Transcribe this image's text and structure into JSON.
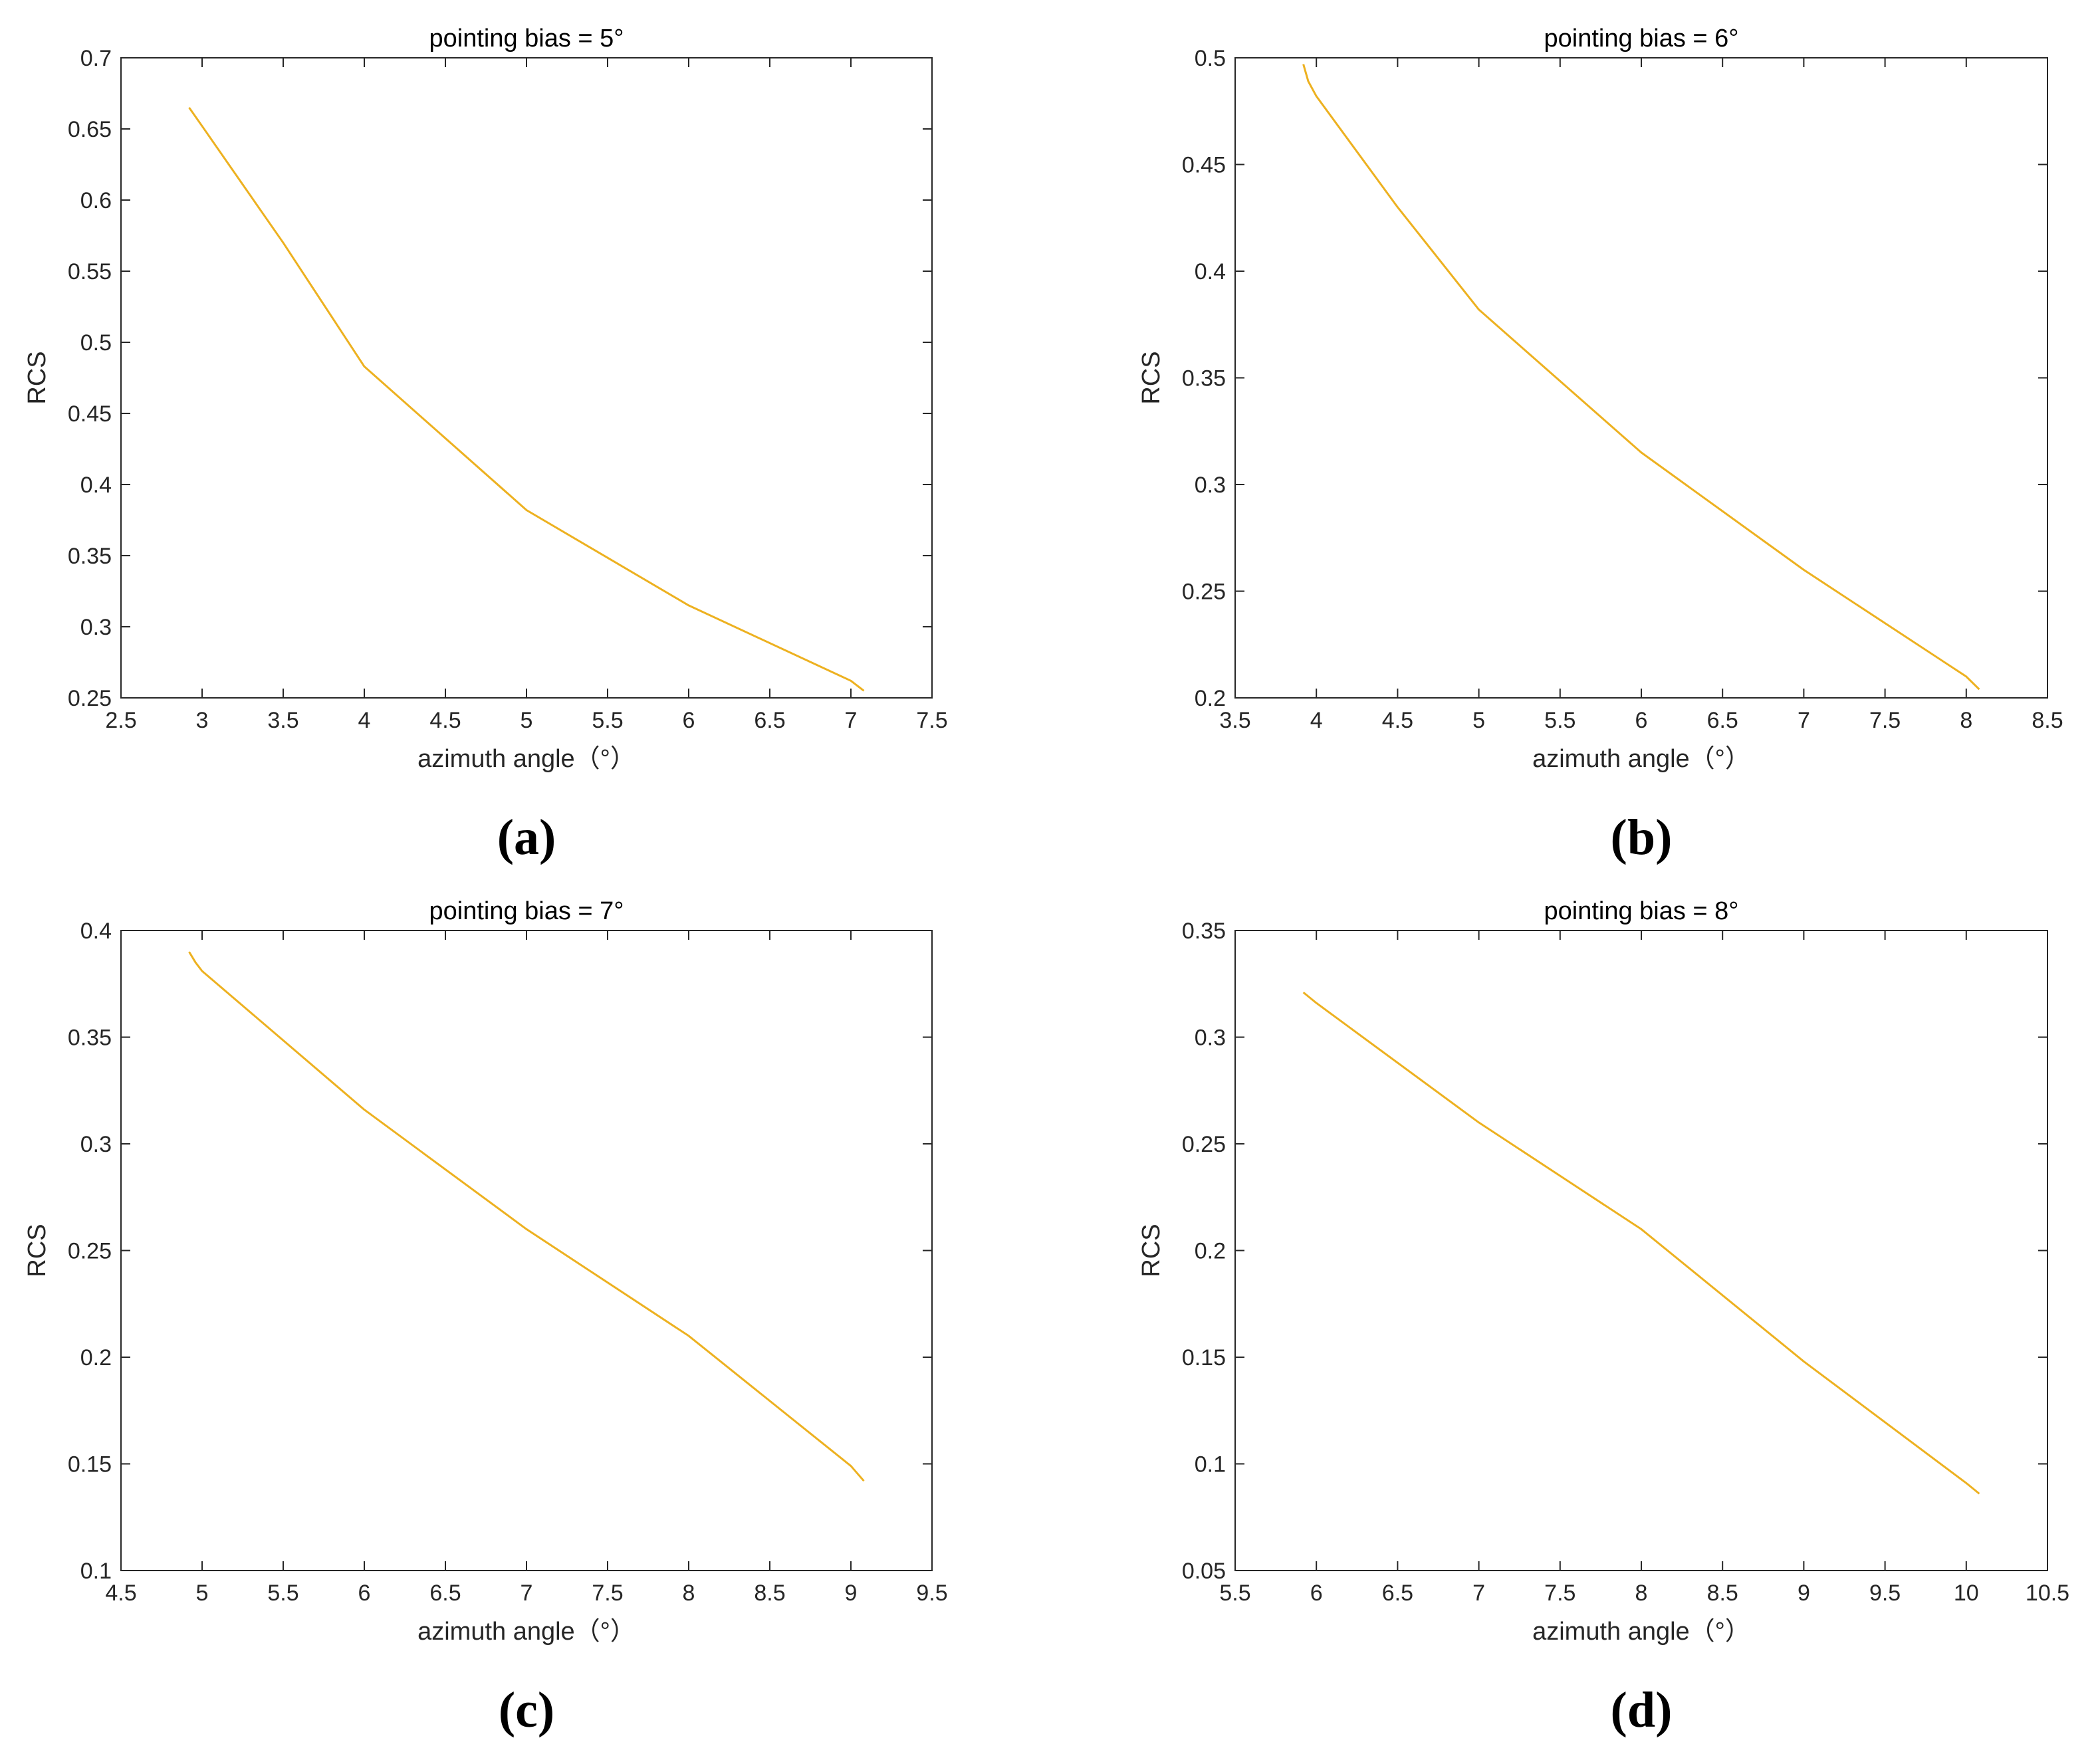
{
  "figure": {
    "panels": [
      {
        "label": "(a)"
      },
      {
        "label": "(b)"
      },
      {
        "label": "(c)"
      },
      {
        "label": "(d)"
      }
    ]
  },
  "chart_data": [
    {
      "type": "line",
      "title": "pointing bias = 5°",
      "xlabel": "azimuth angle（°）",
      "ylabel": "RCS",
      "xlim": [
        2.5,
        7.5
      ],
      "ylim": [
        0.25,
        0.7
      ],
      "xticks": [
        "2.5",
        "3",
        "3.5",
        "4",
        "4.5",
        "5",
        "5.5",
        "6",
        "6.5",
        "7",
        "7.5"
      ],
      "yticks": [
        "0.25",
        "0.3",
        "0.35",
        "0.4",
        "0.45",
        "0.5",
        "0.55",
        "0.6",
        "0.65",
        "0.7"
      ],
      "series": [
        {
          "name": "RCS",
          "color": "#EDB120",
          "x": [
            2.92,
            3.0,
            3.5,
            4.0,
            5.0,
            6.0,
            7.0,
            7.08
          ],
          "y": [
            0.665,
            0.652,
            0.57,
            0.483,
            0.382,
            0.315,
            0.262,
            0.255
          ]
        }
      ]
    },
    {
      "type": "line",
      "title": "pointing bias = 6°",
      "xlabel": "azimuth angle（°）",
      "ylabel": "RCS",
      "xlim": [
        3.5,
        8.5
      ],
      "ylim": [
        0.2,
        0.5
      ],
      "xticks": [
        "3.5",
        "4",
        "4.5",
        "5",
        "5.5",
        "6",
        "6.5",
        "7",
        "7.5",
        "8",
        "8.5"
      ],
      "yticks": [
        "0.2",
        "0.25",
        "0.3",
        "0.35",
        "0.4",
        "0.45",
        "0.5"
      ],
      "series": [
        {
          "name": "RCS",
          "color": "#EDB120",
          "x": [
            3.92,
            3.95,
            4.0,
            4.5,
            5.0,
            6.0,
            7.0,
            8.0,
            8.08
          ],
          "y": [
            0.497,
            0.489,
            0.482,
            0.43,
            0.382,
            0.315,
            0.26,
            0.21,
            0.204
          ]
        }
      ]
    },
    {
      "type": "line",
      "title": "pointing bias = 7°",
      "xlabel": "azimuth angle（°）",
      "ylabel": "RCS",
      "xlim": [
        4.5,
        9.5
      ],
      "ylim": [
        0.1,
        0.4
      ],
      "xticks": [
        "4.5",
        "5",
        "5.5",
        "6",
        "6.5",
        "7",
        "7.5",
        "8",
        "8.5",
        "9",
        "9.5"
      ],
      "yticks": [
        "0.1",
        "0.15",
        "0.2",
        "0.25",
        "0.3",
        "0.35",
        "0.4"
      ],
      "series": [
        {
          "name": "RCS",
          "color": "#EDB120",
          "x": [
            4.92,
            4.96,
            5.0,
            6.0,
            7.0,
            8.0,
            9.0,
            9.08
          ],
          "y": [
            0.39,
            0.385,
            0.381,
            0.316,
            0.26,
            0.21,
            0.149,
            0.142
          ]
        }
      ]
    },
    {
      "type": "line",
      "title": "pointing bias = 8°",
      "xlabel": "azimuth angle（°）",
      "ylabel": "RCS",
      "xlim": [
        5.5,
        10.5
      ],
      "ylim": [
        0.05,
        0.35
      ],
      "xticks": [
        "5.5",
        "6",
        "6.5",
        "7",
        "7.5",
        "8",
        "8.5",
        "9",
        "9.5",
        "10",
        "10.5"
      ],
      "yticks": [
        "0.05",
        "0.1",
        "0.15",
        "0.2",
        "0.25",
        "0.3",
        "0.35"
      ],
      "series": [
        {
          "name": "RCS",
          "color": "#EDB120",
          "x": [
            5.92,
            6.0,
            7.0,
            8.0,
            9.0,
            10.0,
            10.08
          ],
          "y": [
            0.321,
            0.316,
            0.26,
            0.21,
            0.148,
            0.091,
            0.086
          ]
        }
      ]
    }
  ]
}
